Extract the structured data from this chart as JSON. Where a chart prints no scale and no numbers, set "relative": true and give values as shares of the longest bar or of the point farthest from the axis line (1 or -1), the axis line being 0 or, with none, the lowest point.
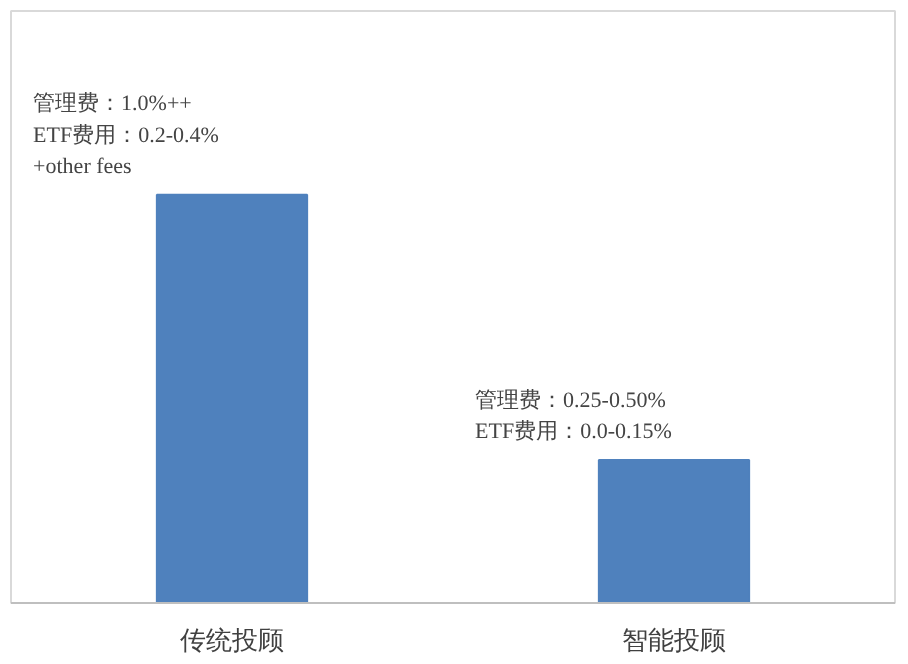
{
  "chart_data": {
    "type": "bar",
    "relative": true,
    "categories": [
      "传统投顾",
      "智能投顾"
    ],
    "values": [
      1,
      0.35
    ],
    "color": "#4f81bd",
    "annotations": [
      {
        "text": "管理费：1.0%++\nETF费用：0.2-0.4%\n    +other fees",
        "x": "传统投顾",
        "y": 1
      },
      {
        "text": "管理费：0.25-0.50%\nETF费用：0.0-0.15%",
        "x": "智能投顾",
        "y": 0.35
      }
    ]
  }
}
